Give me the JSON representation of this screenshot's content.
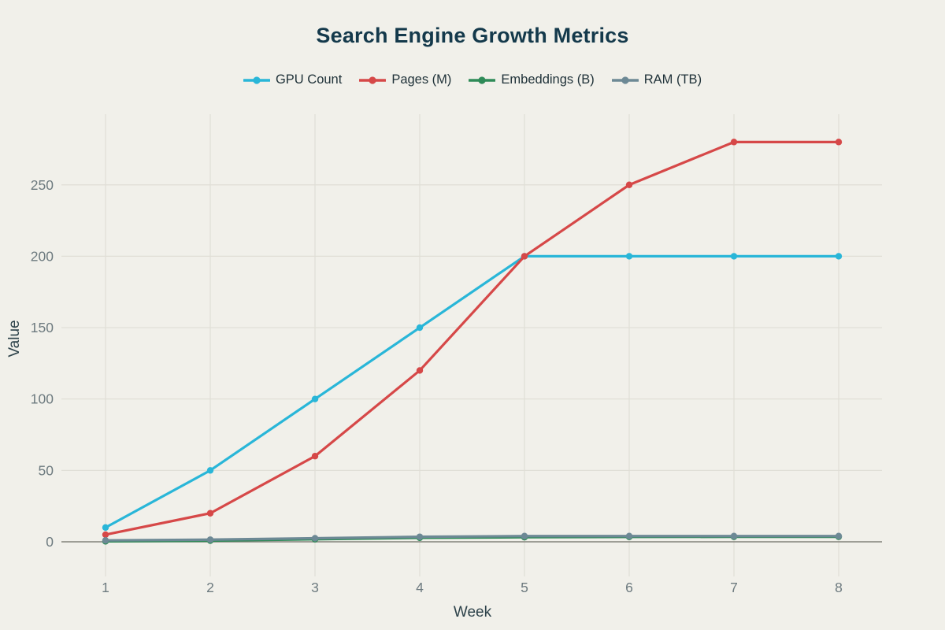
{
  "chart_data": {
    "type": "line",
    "title": "Search Engine Growth Metrics",
    "xlabel": "Week",
    "ylabel": "Value",
    "x": [
      1,
      2,
      3,
      4,
      5,
      6,
      7,
      8
    ],
    "yticks": [
      0,
      50,
      100,
      150,
      200,
      250
    ],
    "ylim": [
      0,
      300
    ],
    "grid": true,
    "legend_position": "top-center",
    "series": [
      {
        "name": "GPU Count",
        "color": "#29b6d8",
        "values": [
          10,
          50,
          100,
          150,
          200,
          200,
          200,
          200
        ]
      },
      {
        "name": "Pages (M)",
        "color": "#d64848",
        "values": [
          5,
          20,
          60,
          120,
          200,
          250,
          280,
          280
        ]
      },
      {
        "name": "Embeddings (B)",
        "color": "#2f8b58",
        "values": [
          0.3,
          0.8,
          1.8,
          2.8,
          3.2,
          3.4,
          3.5,
          3.5
        ]
      },
      {
        "name": "RAM (TB)",
        "color": "#6d8995",
        "values": [
          1,
          1.5,
          2.5,
          3.5,
          4,
          4,
          4,
          4
        ]
      }
    ],
    "colors": {
      "background": "#f1f0ea",
      "grid": "#e0ded6",
      "zero_line": "#83827b",
      "title_text": "#14394b",
      "tick_text": "#6d7a7f",
      "axis_label_text": "#2d424a",
      "legend_text": "#203239"
    }
  }
}
